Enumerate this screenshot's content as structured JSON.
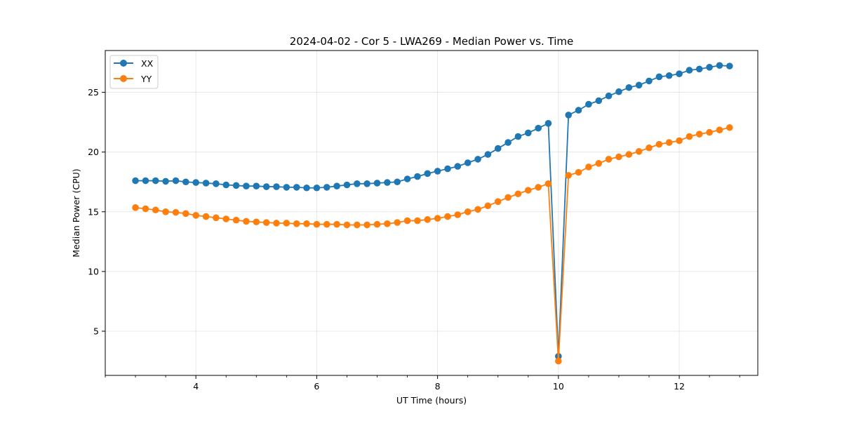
{
  "chart_data": {
    "type": "line",
    "title": "2024-04-02 - Cor 5 - LWA269 - Median Power vs. Time",
    "xlabel": "UT Time (hours)",
    "ylabel": "Median Power (CPU)",
    "xlim": [
      2.5,
      13.3
    ],
    "ylim": [
      1.3,
      28.5
    ],
    "xticks": [
      4,
      6,
      8,
      10,
      12
    ],
    "xtick_labels": [
      "4",
      "6",
      "8",
      "10",
      "12"
    ],
    "yticks": [
      5,
      10,
      15,
      20,
      25
    ],
    "ytick_labels": [
      "5",
      "10",
      "15",
      "20",
      "25"
    ],
    "grid": true,
    "legend_position": "top-left",
    "x": [
      3.0,
      3.167,
      3.333,
      3.5,
      3.667,
      3.833,
      4.0,
      4.167,
      4.333,
      4.5,
      4.667,
      4.833,
      5.0,
      5.167,
      5.333,
      5.5,
      5.667,
      5.833,
      6.0,
      6.167,
      6.333,
      6.5,
      6.667,
      6.833,
      7.0,
      7.167,
      7.333,
      7.5,
      7.667,
      7.833,
      8.0,
      8.167,
      8.333,
      8.5,
      8.667,
      8.833,
      9.0,
      9.167,
      9.333,
      9.5,
      9.667,
      9.833,
      10.0,
      10.167,
      10.333,
      10.5,
      10.667,
      10.833,
      11.0,
      11.167,
      11.333,
      11.5,
      11.667,
      11.833,
      12.0,
      12.167,
      12.333,
      12.5,
      12.667,
      12.833
    ],
    "series": [
      {
        "name": "XX",
        "color": "#1f77b4",
        "values": [
          17.6,
          17.6,
          17.6,
          17.55,
          17.6,
          17.5,
          17.45,
          17.4,
          17.35,
          17.25,
          17.2,
          17.15,
          17.15,
          17.1,
          17.1,
          17.05,
          17.05,
          17.0,
          17.0,
          17.05,
          17.15,
          17.25,
          17.35,
          17.35,
          17.4,
          17.45,
          17.5,
          17.75,
          17.95,
          18.2,
          18.4,
          18.6,
          18.8,
          19.1,
          19.4,
          19.8,
          20.3,
          20.8,
          21.3,
          21.6,
          22.0,
          22.4,
          2.9,
          23.1,
          23.5,
          24.0,
          24.3,
          24.7,
          25.05,
          25.4,
          25.6,
          25.95,
          26.3,
          26.4,
          26.55,
          26.85,
          26.95,
          27.1,
          27.25,
          27.2
        ]
      },
      {
        "name": "YY",
        "color": "#ff7f0e",
        "values": [
          15.35,
          15.25,
          15.15,
          15.0,
          14.95,
          14.85,
          14.7,
          14.6,
          14.5,
          14.4,
          14.3,
          14.2,
          14.15,
          14.1,
          14.05,
          14.05,
          14.0,
          14.0,
          13.95,
          13.95,
          13.95,
          13.9,
          13.9,
          13.9,
          13.95,
          14.0,
          14.1,
          14.25,
          14.25,
          14.35,
          14.45,
          14.6,
          14.75,
          15.0,
          15.2,
          15.5,
          15.85,
          16.2,
          16.5,
          16.8,
          17.05,
          17.35,
          2.5,
          18.05,
          18.3,
          18.75,
          19.05,
          19.4,
          19.6,
          19.8,
          20.05,
          20.35,
          20.65,
          20.8,
          20.95,
          21.3,
          21.5,
          21.65,
          21.85,
          22.05
        ]
      }
    ]
  }
}
